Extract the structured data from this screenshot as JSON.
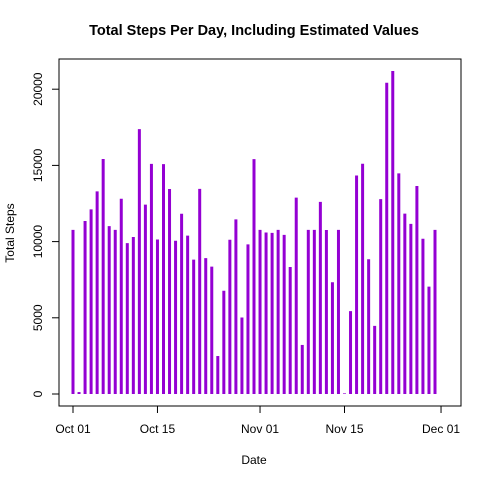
{
  "chart_data": {
    "type": "bar",
    "title": "Total Steps Per Day, Including Estimated Values",
    "xlabel": "Date",
    "ylabel": "Total Steps",
    "bar_color": "#9400D3",
    "xlim": [
      "2012-10-01",
      "2012-11-30"
    ],
    "ylim": [
      0,
      21194
    ],
    "x_ticks": [
      {
        "date": "2012-10-01",
        "label": "Oct 01"
      },
      {
        "date": "2012-10-15",
        "label": "Oct 15"
      },
      {
        "date": "2012-11-01",
        "label": "Nov 01"
      },
      {
        "date": "2012-11-15",
        "label": "Nov 15"
      },
      {
        "date": "2012-12-01",
        "label": "Dec 01"
      }
    ],
    "y_ticks": [
      0,
      5000,
      10000,
      15000,
      20000
    ],
    "x": [
      "2012-10-01",
      "2012-10-02",
      "2012-10-03",
      "2012-10-04",
      "2012-10-05",
      "2012-10-06",
      "2012-10-07",
      "2012-10-08",
      "2012-10-09",
      "2012-10-10",
      "2012-10-11",
      "2012-10-12",
      "2012-10-13",
      "2012-10-14",
      "2012-10-15",
      "2012-10-16",
      "2012-10-17",
      "2012-10-18",
      "2012-10-19",
      "2012-10-20",
      "2012-10-21",
      "2012-10-22",
      "2012-10-23",
      "2012-10-24",
      "2012-10-25",
      "2012-10-26",
      "2012-10-27",
      "2012-10-28",
      "2012-10-29",
      "2012-10-30",
      "2012-10-31",
      "2012-11-01",
      "2012-11-02",
      "2012-11-03",
      "2012-11-04",
      "2012-11-05",
      "2012-11-06",
      "2012-11-07",
      "2012-11-08",
      "2012-11-09",
      "2012-11-10",
      "2012-11-11",
      "2012-11-12",
      "2012-11-13",
      "2012-11-14",
      "2012-11-15",
      "2012-11-16",
      "2012-11-17",
      "2012-11-18",
      "2012-11-19",
      "2012-11-20",
      "2012-11-21",
      "2012-11-22",
      "2012-11-23",
      "2012-11-24",
      "2012-11-25",
      "2012-11-26",
      "2012-11-27",
      "2012-11-28",
      "2012-11-29",
      "2012-11-30"
    ],
    "values": [
      10766,
      126,
      11352,
      12116,
      13294,
      15420,
      11015,
      10766,
      12811,
      9900,
      10304,
      17382,
      12426,
      15098,
      10139,
      15084,
      13452,
      10056,
      11829,
      10395,
      8821,
      13460,
      8918,
      8355,
      2492,
      6778,
      10119,
      11458,
      5018,
      9819,
      15414,
      10766,
      10600,
      10571,
      10766,
      10439,
      8334,
      12883,
      3219,
      10766,
      10766,
      12608,
      10765,
      7336,
      10766,
      41,
      5441,
      14339,
      15110,
      8841,
      4472,
      12787,
      20427,
      21194,
      14478,
      11834,
      11162,
      13646,
      10183,
      7047,
      10766
    ]
  }
}
